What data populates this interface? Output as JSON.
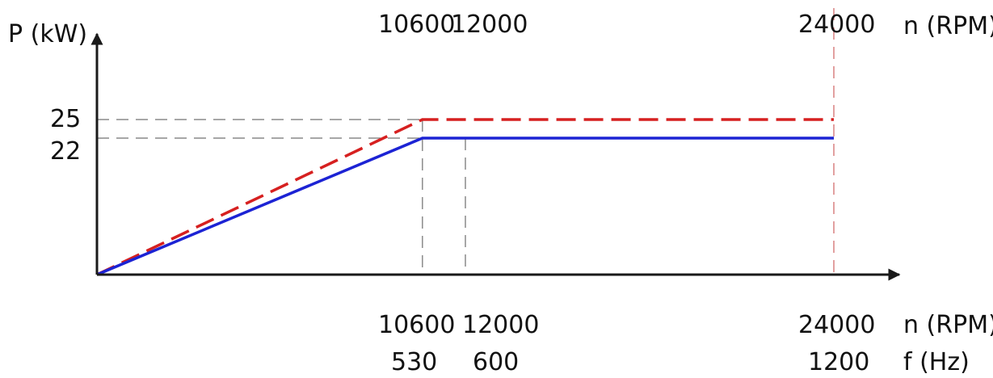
{
  "chart_data": {
    "type": "line",
    "ylabel": "P (kW)",
    "top_axis_label": "n (RPM)",
    "bottom_axis_labels": [
      "n (RPM)",
      "f (Hz)"
    ],
    "top_ticks": [
      "10600",
      "12000",
      "24000"
    ],
    "bottom_ticks_rpm": [
      "10600",
      "12000",
      "24000"
    ],
    "bottom_ticks_hz": [
      "530",
      "600",
      "1200"
    ],
    "y_ticks": [
      "25",
      "22"
    ],
    "xlim": [
      0,
      26000
    ],
    "ylim": [
      0,
      33
    ],
    "series": [
      {
        "color": "#d62020",
        "dash": true,
        "x": [
          0,
          10600,
          24000
        ],
        "y": [
          0,
          25,
          25
        ]
      },
      {
        "color": "#1c23d4",
        "dash": false,
        "x": [
          0,
          10600,
          24000
        ],
        "y": [
          0,
          22,
          22
        ]
      }
    ],
    "guides": {
      "vertical_rpm": [
        10600,
        12000,
        24000
      ],
      "horizontal_kw": [
        25,
        22
      ]
    }
  }
}
